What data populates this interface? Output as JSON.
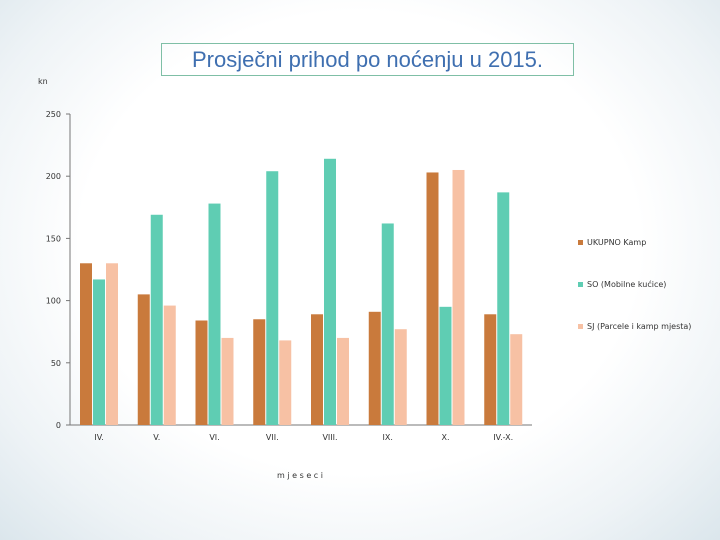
{
  "chart_data": {
    "type": "bar",
    "title": "Prosječni prihod po noćenju u 2015.",
    "ylabel": "kn",
    "xlabel": "m j e s e c i",
    "ylim": [
      0,
      250
    ],
    "yticks": [
      "0",
      "50",
      "100",
      "150",
      "200",
      "250"
    ],
    "categories": [
      "IV.",
      "V.",
      "VI.",
      "VII.",
      "VIII.",
      "IX.",
      "X.",
      "IV.-X."
    ],
    "legend_position": "right",
    "series": [
      {
        "name": "UKUPNO Kamp",
        "color": "#c97a3c",
        "values": [
          130,
          105,
          84,
          85,
          89,
          91,
          203,
          89
        ]
      },
      {
        "name": "SO (Mobilne kućice)",
        "color": "#5fcdb3",
        "values": [
          117,
          169,
          178,
          204,
          214,
          162,
          95,
          187
        ]
      },
      {
        "name": "SJ (Parcele i kamp mjesta)",
        "color": "#f7c1a4",
        "values": [
          130,
          96,
          70,
          68,
          70,
          77,
          205,
          73
        ]
      }
    ]
  }
}
